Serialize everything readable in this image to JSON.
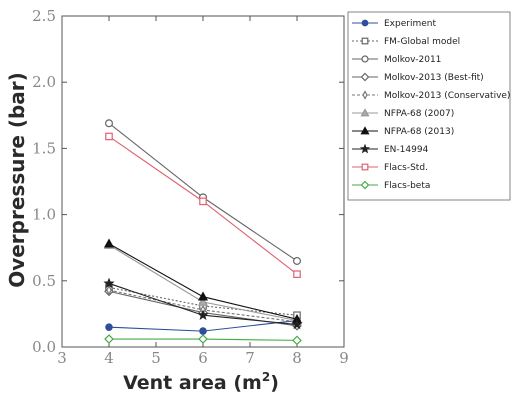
{
  "chart_data": {
    "type": "line",
    "title": "",
    "xlabel": "Vent area (m",
    "xlabel_sup": "2",
    "xlabel_close": ")",
    "ylabel": "Overpressure (bar)",
    "xlim": [
      3,
      9
    ],
    "ylim": [
      0,
      2.5
    ],
    "xticks": [
      "3",
      "4",
      "5",
      "6",
      "7",
      "8",
      "9"
    ],
    "yticks": [
      "0.0",
      "0.5",
      "1.0",
      "1.5",
      "2.0",
      "2.5"
    ],
    "grid": false,
    "legend_position": "right",
    "x": [
      4,
      6,
      8
    ],
    "series": [
      {
        "name": "Experiment",
        "values": [
          0.15,
          0.12,
          0.2
        ],
        "color": "#2f4f9c",
        "marker": "circle-filled",
        "dash": ""
      },
      {
        "name": "FM-Global model",
        "values": [
          0.45,
          0.31,
          0.24
        ],
        "color": "#666666",
        "marker": "square-open",
        "dash": "2,2"
      },
      {
        "name": "Molkov-2011",
        "values": [
          1.69,
          1.13,
          0.65
        ],
        "color": "#666666",
        "marker": "circle-open",
        "dash": ""
      },
      {
        "name": "Molkov-2013 (Best-fit)",
        "values": [
          0.42,
          0.26,
          0.16
        ],
        "color": "#666666",
        "marker": "diamond-open",
        "dash": ""
      },
      {
        "name": "Molkov-2013 (Conservative)",
        "values": [
          0.43,
          0.28,
          0.19
        ],
        "color": "#777777",
        "marker": "thin-diamond-open",
        "dash": "3,2"
      },
      {
        "name": "NFPA-68 (2007)",
        "values": [
          0.77,
          0.34,
          0.2
        ],
        "color": "#999999",
        "marker": "triangle-gray",
        "dash": ""
      },
      {
        "name": "NFPA-68 (2013)",
        "values": [
          0.78,
          0.38,
          0.21
        ],
        "color": "#111111",
        "marker": "triangle-filled",
        "dash": ""
      },
      {
        "name": "EN-14994",
        "values": [
          0.48,
          0.24,
          0.17
        ],
        "color": "#222222",
        "marker": "star",
        "dash": ""
      },
      {
        "name": "Flacs-Std.",
        "values": [
          1.59,
          1.1,
          0.55
        ],
        "color": "#e06070",
        "marker": "square-open",
        "dash": ""
      },
      {
        "name": "Flacs-beta",
        "values": [
          0.06,
          0.06,
          0.05
        ],
        "color": "#44aa44",
        "marker": "diamond-open",
        "dash": ""
      }
    ]
  }
}
